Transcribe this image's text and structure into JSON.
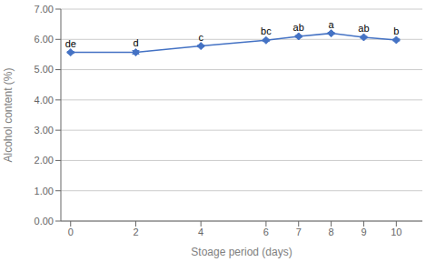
{
  "chart_data": {
    "type": "line",
    "x": [
      0,
      2,
      4,
      6,
      7,
      8,
      9,
      10
    ],
    "values": [
      5.57,
      5.57,
      5.78,
      5.97,
      6.1,
      6.2,
      6.07,
      5.98
    ],
    "yerr": [
      0.03,
      0.06,
      0.03,
      0.03,
      0.03,
      0.03,
      0.03,
      0.03
    ],
    "annotations": [
      "de",
      "d",
      "c",
      "bc",
      "ab",
      "a",
      "ab",
      "b"
    ],
    "xlabel": "Stoage period (days)",
    "ylabel": "Alcohol content (%)",
    "xlim": [
      -0.3,
      10.8
    ],
    "xticks": [
      0,
      2,
      4,
      6,
      7,
      8,
      9,
      10
    ],
    "ylim": [
      0,
      7.0
    ],
    "yticks": [
      {
        "value": 0.0,
        "label": "0.00"
      },
      {
        "value": 1.0,
        "label": "1.00"
      },
      {
        "value": 2.0,
        "label": "2.00"
      },
      {
        "value": 3.0,
        "label": "3.00"
      },
      {
        "value": 4.0,
        "label": "4.00"
      },
      {
        "value": 5.0,
        "label": "5.00"
      },
      {
        "value": 6.0,
        "label": "6.00"
      },
      {
        "value": 7.0,
        "label": "7.00"
      }
    ],
    "color": "#4472C4",
    "marker": "diamond",
    "line_style": "solid",
    "grid": true
  }
}
